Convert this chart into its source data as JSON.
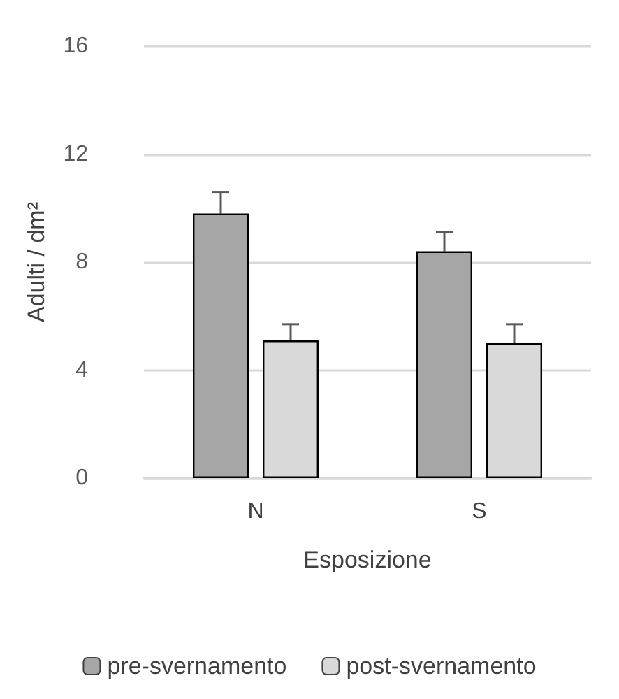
{
  "chart_data": {
    "type": "bar",
    "xlabel": "Esposizione",
    "ylabel": "Adulti / dm²",
    "categories": [
      "N",
      "S"
    ],
    "series": [
      {
        "name": "pre-svernamento",
        "color": "#a6a6a6",
        "values": [
          9.8,
          8.4
        ],
        "errors": [
          [
            9.8,
            10.6
          ],
          [
            8.4,
            9.1
          ]
        ]
      },
      {
        "name": "post-svernamento",
        "color": "#d9d9d9",
        "values": [
          5.1,
          5.0
        ],
        "errors": [
          [
            5.1,
            5.7
          ],
          [
            5.0,
            5.7
          ]
        ]
      }
    ],
    "ylim": [
      0,
      16
    ],
    "yticks": [
      0,
      4,
      8,
      12,
      16
    ],
    "grid": "y",
    "legend": "bottom"
  }
}
